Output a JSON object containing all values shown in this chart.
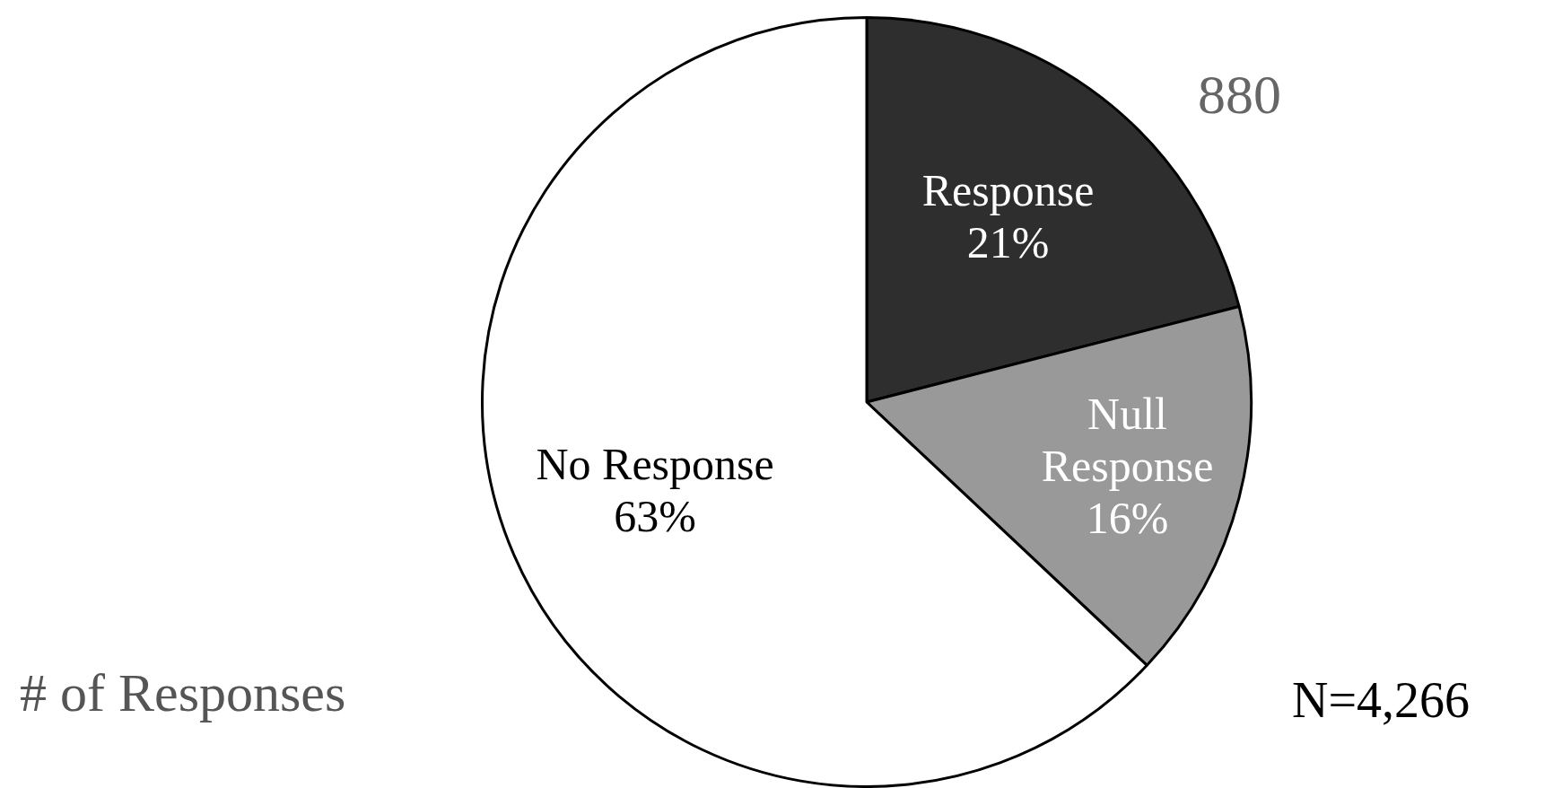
{
  "chart_data": {
    "type": "pie",
    "categories": [
      "Response",
      "Null Response",
      "No Response"
    ],
    "values": [
      21,
      16,
      63
    ],
    "value_labels": [
      "21%",
      "16%",
      "63%"
    ],
    "colors": [
      "#2e2e2e",
      "#999999",
      "#ffffff"
    ],
    "legend": false,
    "annotations": [
      "880",
      "# of Responses",
      "N=4,266"
    ]
  }
}
